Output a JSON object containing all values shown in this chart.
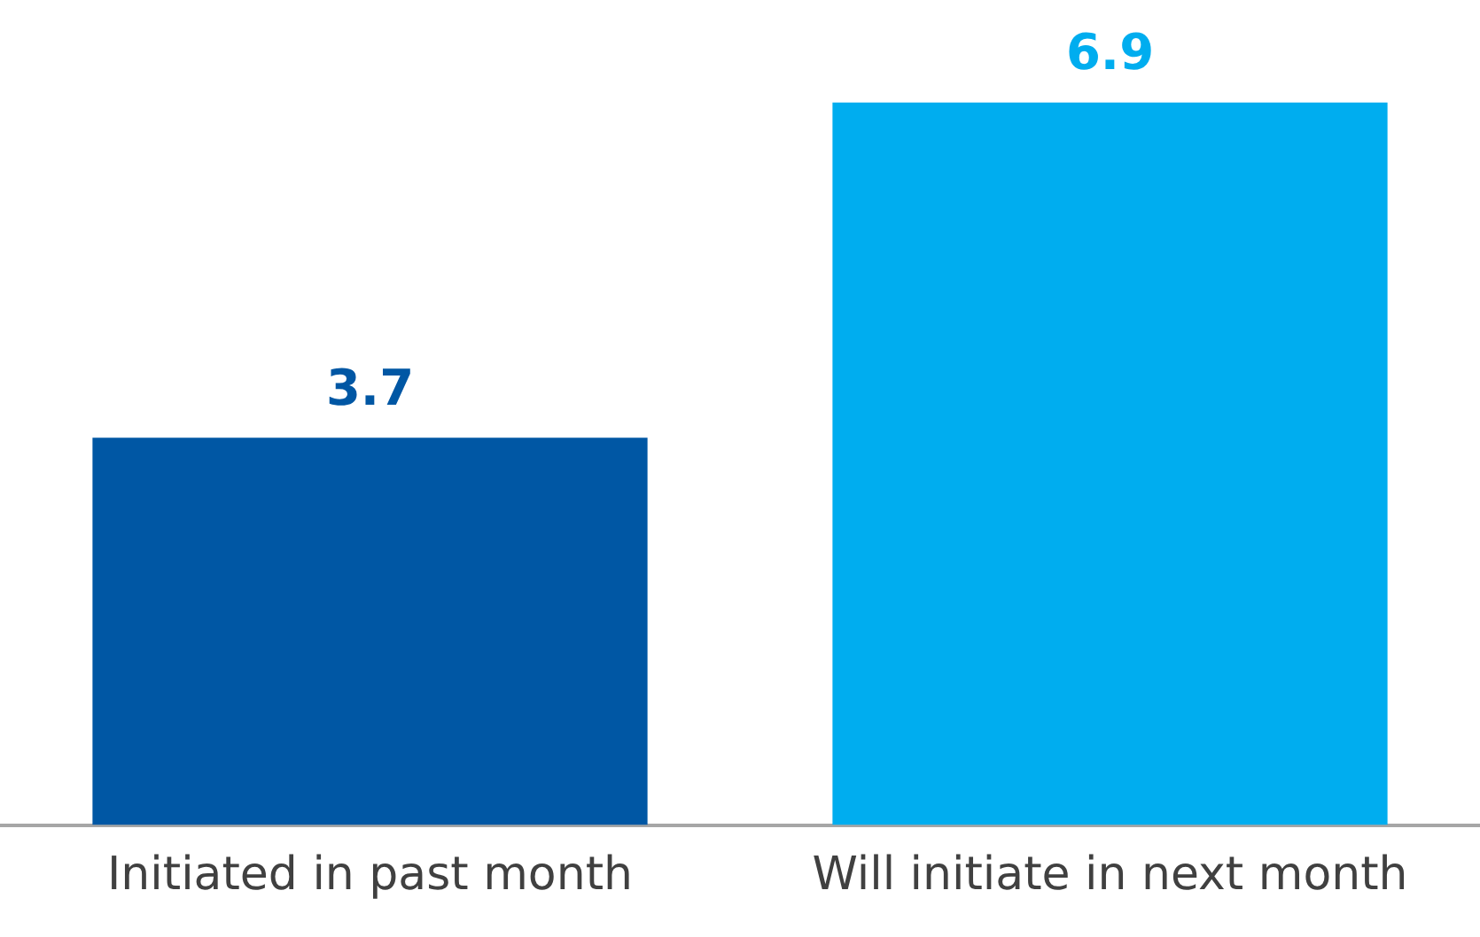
{
  "chart_data": {
    "type": "bar",
    "categories": [
      "Initiated in past month",
      "Will initiate in next month"
    ],
    "values": [
      3.7,
      6.9
    ],
    "colors": [
      "#0057a4",
      "#00adef"
    ],
    "data_labels": true,
    "grid": false,
    "legend": false,
    "tick_labels": "x"
  }
}
